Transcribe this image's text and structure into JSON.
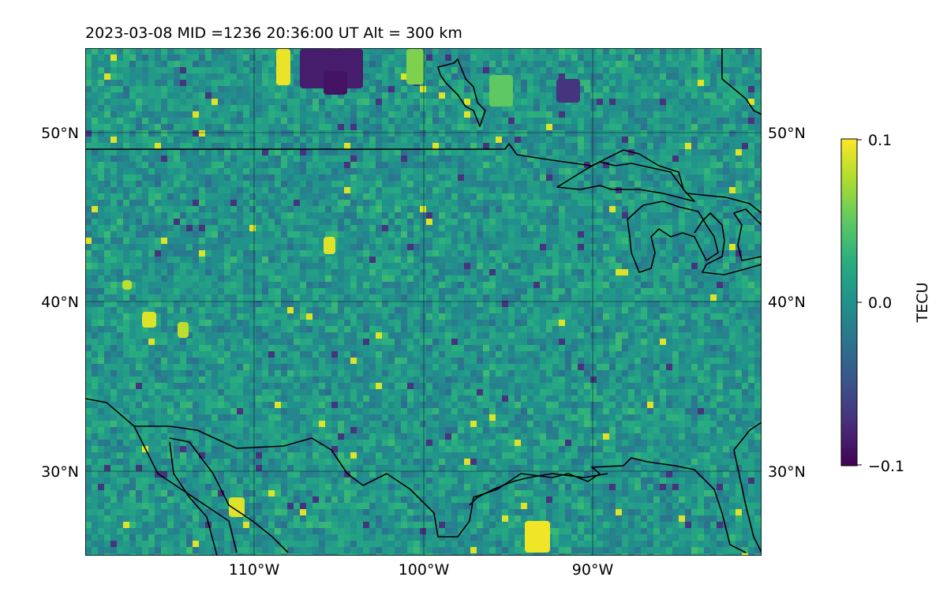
{
  "title": "2023-03-08  MID =1236    20:36:00  UT  Alt = 300 km",
  "map": {
    "lon_range": [
      -120,
      -80
    ],
    "lat_range": [
      25,
      55
    ],
    "lon_ticks": [
      {
        "value": -110,
        "label": "110°W"
      },
      {
        "value": -100,
        "label": "100°W"
      },
      {
        "value": -90,
        "label": "90°W"
      }
    ],
    "lat_ticks": [
      {
        "value": 50,
        "label": "50°N"
      },
      {
        "value": 40,
        "label": "40°N"
      },
      {
        "value": 30,
        "label": "30°N"
      }
    ],
    "gridlines": true,
    "colormap": "viridis",
    "field_description_values": "TEC perturbation field, mostly near 0.0 with scattered highs up to 0.1 and lows to -0.1"
  },
  "colorbar": {
    "label": "TECU",
    "vmin": -0.1,
    "vmax": 0.1,
    "ticks": [
      {
        "value": 0.1,
        "label": "0.1"
      },
      {
        "value": 0.0,
        "label": "0.0"
      },
      {
        "value": -0.1,
        "label": "−0.1"
      }
    ]
  },
  "colors": {
    "viridis_low": "#440154",
    "viridis_mid": "#21918c",
    "viridis_high": "#fde725",
    "coastline": "#000000"
  }
}
